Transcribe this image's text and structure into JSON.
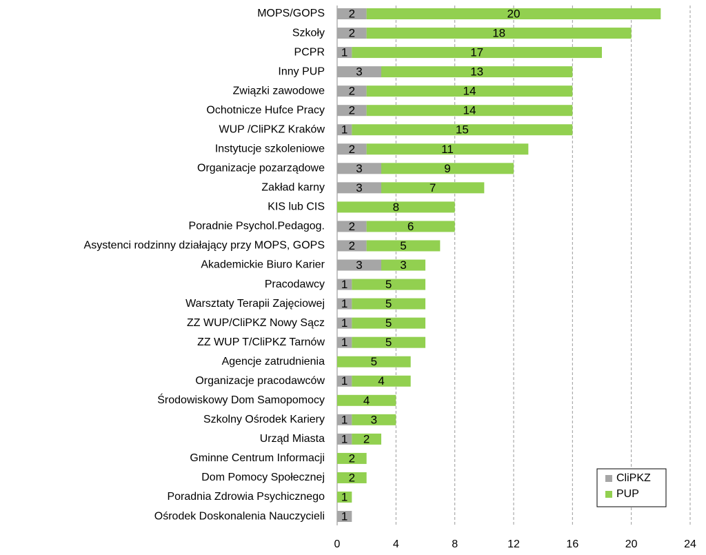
{
  "chart_data": {
    "type": "stacked_barh",
    "categories": [
      "MOPS/GOPS",
      "Szkoły",
      "PCPR",
      "Inny PUP",
      "Związki zawodowe",
      "Ochotnicze Hufce Pracy",
      "WUP /CliPKZ Kraków",
      "Instytucje szkoleniowe",
      "Organizacje pozarządowe",
      "Zakład karny",
      "KIS lub CIS",
      "Poradnie Psychol.Pedagog.",
      "Asystenci rodzinny działający przy MOPS, GOPS",
      "Akademickie Biuro Karier",
      "Pracodawcy",
      "Warsztaty Terapii Zajęciowej",
      "ZZ WUP/CliPKZ Nowy Sącz",
      "ZZ WUP T/CliPKZ Tarnów",
      "Agencje zatrudnienia",
      "Organizacje pracodawców",
      "Środowiskowy Dom Samopomocy",
      "Szkolny Ośrodek Kariery",
      "Urząd Miasta",
      "Gminne Centrum Informacji",
      "Dom Pomocy Społecznej",
      "Poradnia Zdrowia Psychicznego",
      "Ośrodek Doskonalenia Nauczycieli"
    ],
    "series": [
      {
        "name": "CliPKZ",
        "color": "#a6a6a6",
        "values": [
          2,
          2,
          1,
          3,
          2,
          2,
          1,
          2,
          3,
          3,
          null,
          2,
          2,
          3,
          1,
          1,
          1,
          1,
          null,
          1,
          null,
          1,
          1,
          null,
          null,
          null,
          1
        ]
      },
      {
        "name": "PUP",
        "color": "#92d050",
        "values": [
          20,
          18,
          17,
          13,
          14,
          14,
          15,
          11,
          9,
          7,
          8,
          6,
          5,
          3,
          5,
          5,
          5,
          5,
          5,
          4,
          4,
          3,
          2,
          2,
          2,
          1,
          null
        ]
      }
    ],
    "xlim": [
      0,
      24
    ],
    "xticks": [
      0,
      4,
      8,
      12,
      16,
      20,
      24
    ],
    "grid": true,
    "legend": "lower right"
  }
}
